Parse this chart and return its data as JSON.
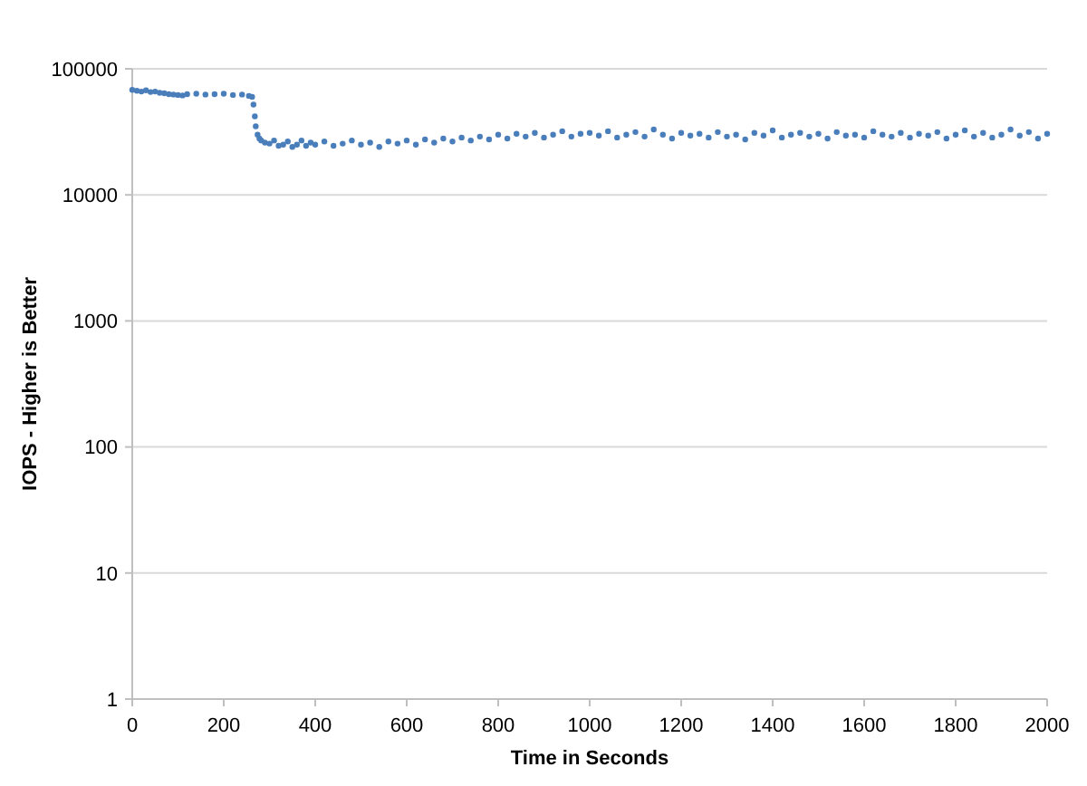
{
  "chart_data": {
    "type": "scatter",
    "xlabel": "Time in Seconds",
    "ylabel": "IOPS - Higher is Better",
    "log": "y",
    "grid": "y",
    "marker": "circle",
    "xlim": [
      0,
      2000
    ],
    "ylim": [
      1,
      100000
    ],
    "xticks": [
      0,
      200,
      400,
      600,
      800,
      1000,
      1200,
      1400,
      1600,
      1800,
      2000
    ],
    "yticks": [
      1,
      10,
      100,
      1000,
      10000,
      100000
    ],
    "series": [
      {
        "color": "#4a7ebb",
        "x": [
          0,
          10,
          20,
          30,
          40,
          50,
          60,
          70,
          80,
          90,
          100,
          110,
          120,
          140,
          160,
          180,
          200,
          220,
          240,
          255,
          262,
          265,
          268,
          270,
          274,
          278,
          282,
          290,
          300,
          310,
          320,
          330,
          340,
          350,
          360,
          370,
          380,
          390,
          400,
          420,
          440,
          460,
          480,
          500,
          520,
          540,
          560,
          580,
          600,
          620,
          640,
          660,
          680,
          700,
          720,
          740,
          760,
          780,
          800,
          820,
          840,
          860,
          880,
          900,
          920,
          940,
          960,
          980,
          1000,
          1020,
          1040,
          1060,
          1080,
          1100,
          1120,
          1140,
          1160,
          1180,
          1200,
          1220,
          1240,
          1260,
          1280,
          1300,
          1320,
          1340,
          1360,
          1380,
          1400,
          1420,
          1440,
          1460,
          1480,
          1500,
          1520,
          1540,
          1560,
          1580,
          1600,
          1620,
          1640,
          1660,
          1680,
          1700,
          1720,
          1740,
          1760,
          1780,
          1800,
          1820,
          1840,
          1860,
          1880,
          1900,
          1920,
          1940,
          1960,
          1980,
          2000
        ],
        "values": [
          68000,
          67000,
          66000,
          67500,
          65500,
          66000,
          64500,
          64000,
          63000,
          62500,
          62000,
          61500,
          63000,
          63500,
          62500,
          63000,
          63500,
          62000,
          62500,
          61000,
          60000,
          52000,
          42000,
          35000,
          30000,
          28000,
          27000,
          26000,
          25500,
          27000,
          24500,
          25000,
          26500,
          24000,
          25000,
          27000,
          24500,
          26000,
          25000,
          26500,
          24500,
          25500,
          27000,
          25000,
          26000,
          24000,
          26500,
          25500,
          27000,
          25000,
          27500,
          26000,
          28000,
          26500,
          28500,
          27000,
          29000,
          27500,
          30000,
          28000,
          30500,
          29000,
          31000,
          28500,
          30000,
          32000,
          29000,
          30500,
          31000,
          29500,
          32000,
          28500,
          30000,
          31500,
          29000,
          33000,
          30000,
          28000,
          31000,
          29500,
          30500,
          28500,
          31500,
          29000,
          30000,
          27500,
          31000,
          29500,
          32500,
          28500,
          30000,
          31000,
          29000,
          30500,
          28000,
          31500,
          29500,
          30000,
          28500,
          32000,
          30000,
          29000,
          31000,
          28500,
          30500,
          29500,
          31500,
          28000,
          30000,
          32500,
          29000,
          31000,
          28500,
          30000,
          33000,
          29500,
          31500,
          28000,
          30500
        ]
      }
    ]
  }
}
